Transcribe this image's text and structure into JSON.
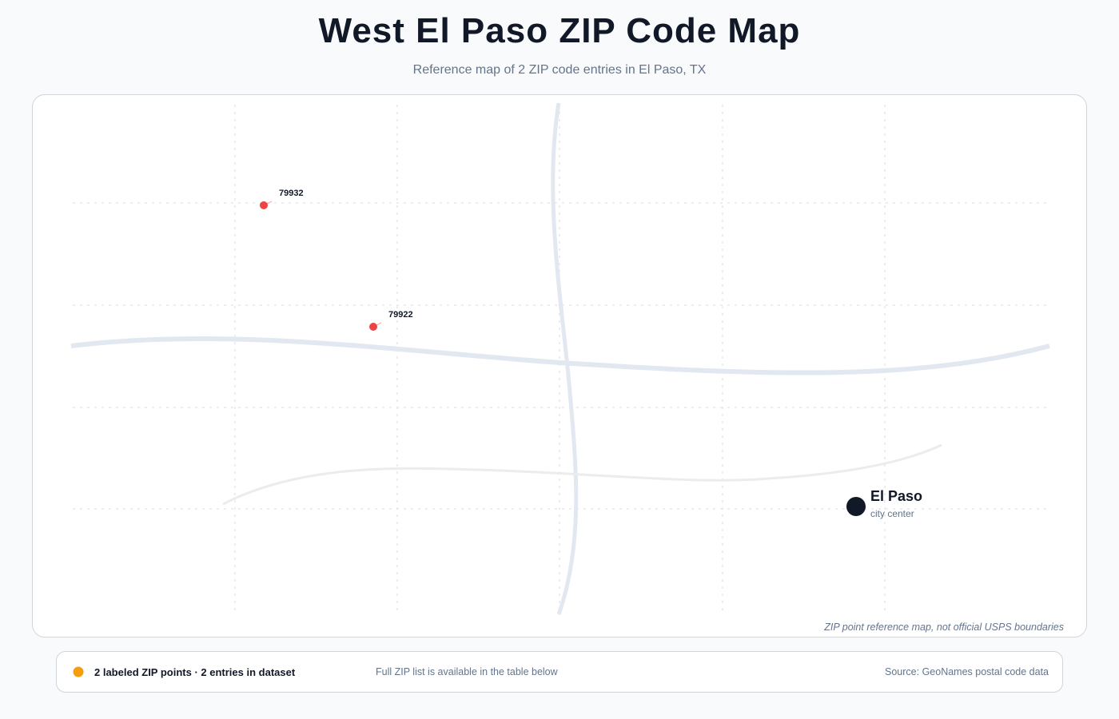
{
  "header": {
    "title": "West El Paso ZIP Code Map",
    "subtitle": "Reference map of 2 ZIP code entries in El Paso, TX"
  },
  "map": {
    "zip_points": [
      {
        "label": "79932"
      },
      {
        "label": "79922"
      }
    ],
    "city": {
      "name": "El Paso",
      "note": "city center"
    },
    "disclaimer": "ZIP point reference map, not official USPS boundaries"
  },
  "footer": {
    "summary": "2 labeled ZIP points · 2 entries in dataset",
    "note": "Full ZIP list is available in the table below",
    "source": "Source: GeoNames postal code data"
  }
}
